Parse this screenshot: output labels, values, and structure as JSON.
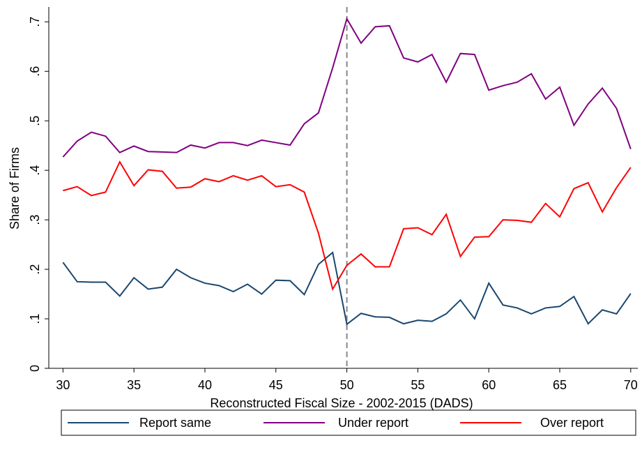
{
  "chart_data": {
    "type": "line",
    "x_label": "Reconstructed Fiscal Size - 2002-2015 (DADS)",
    "y_label": "Share of Firms",
    "x": [
      30,
      31,
      32,
      33,
      34,
      35,
      36,
      37,
      38,
      39,
      40,
      41,
      42,
      43,
      44,
      45,
      46,
      47,
      48,
      49,
      50,
      51,
      52,
      53,
      54,
      55,
      56,
      57,
      58,
      59,
      60,
      61,
      62,
      63,
      64,
      65,
      66,
      67,
      68,
      69,
      70
    ],
    "series": [
      {
        "name": "Report same",
        "color": "#1a476f",
        "values": [
          0.214,
          0.175,
          0.174,
          0.174,
          0.146,
          0.183,
          0.16,
          0.164,
          0.2,
          0.183,
          0.172,
          0.167,
          0.155,
          0.17,
          0.15,
          0.178,
          0.177,
          0.149,
          0.21,
          0.234,
          0.089,
          0.111,
          0.104,
          0.103,
          0.09,
          0.097,
          0.095,
          0.11,
          0.138,
          0.1,
          0.172,
          0.128,
          0.122,
          0.11,
          0.122,
          0.125,
          0.145,
          0.09,
          0.118,
          0.11,
          0.151
        ]
      },
      {
        "name": "Under report",
        "color": "#800080",
        "values": [
          0.427,
          0.459,
          0.477,
          0.469,
          0.436,
          0.449,
          0.438,
          0.437,
          0.436,
          0.451,
          0.445,
          0.456,
          0.456,
          0.45,
          0.461,
          0.456,
          0.451,
          0.494,
          0.516,
          0.607,
          0.706,
          0.657,
          0.69,
          0.692,
          0.627,
          0.619,
          0.634,
          0.578,
          0.636,
          0.634,
          0.562,
          0.571,
          0.578,
          0.595,
          0.544,
          0.568,
          0.491,
          0.534,
          0.566,
          0.525,
          0.443
        ]
      },
      {
        "name": "Over report",
        "color": "#ff0000",
        "values": [
          0.359,
          0.367,
          0.349,
          0.356,
          0.417,
          0.369,
          0.401,
          0.398,
          0.364,
          0.366,
          0.383,
          0.377,
          0.389,
          0.38,
          0.389,
          0.367,
          0.371,
          0.356,
          0.273,
          0.16,
          0.208,
          0.231,
          0.205,
          0.205,
          0.282,
          0.284,
          0.27,
          0.311,
          0.226,
          0.265,
          0.266,
          0.3,
          0.299,
          0.295,
          0.333,
          0.306,
          0.363,
          0.375,
          0.316,
          0.365,
          0.406
        ]
      }
    ],
    "xlim": [
      29,
      70.5
    ],
    "ylim": [
      0,
      0.73
    ],
    "xticks": [
      30,
      35,
      40,
      45,
      50,
      55,
      60,
      65,
      70
    ],
    "yticks": [
      0,
      {
        "value": 0.1,
        "label": ".1"
      },
      {
        "value": 0.2,
        "label": ".2"
      },
      {
        "value": 0.3,
        "label": ".3"
      },
      {
        "value": 0.4,
        "label": ".4"
      },
      {
        "value": 0.5,
        "label": ".5"
      },
      {
        "value": 0.6,
        "label": ".6"
      },
      {
        "value": 0.7,
        "label": ".7"
      }
    ],
    "vline": 50,
    "legend": "bottom"
  }
}
